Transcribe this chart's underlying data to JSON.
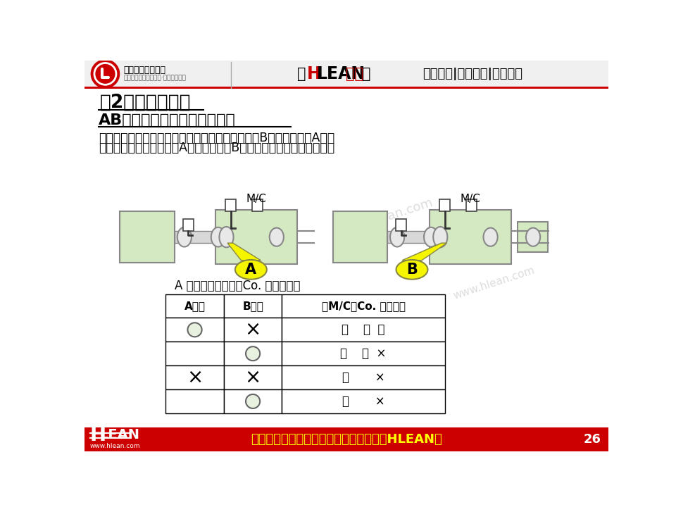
{
  "title_main": "（2）停止生产线",
  "subtitle": "AB控制（满负荷控制）的例子",
  "body_text_line1": "为了使工序之间的标准手持数量保持在一定范围，B处有工件，若A处没",
  "body_text_line2": "有工件，传送带不工作；A处有工件，若B处也有工件，传送带不工作。",
  "table_caption": "A 部件的运输条件（Co. 运行条件）",
  "machine_box_color": "#d4e8c2",
  "machine_label": "M/C",
  "label_A": "A",
  "label_B": "B",
  "label_AB_bg": "#f5f500",
  "table_headers": [
    "A工件",
    "B工件",
    "（M/C）Co. 运行条件"
  ],
  "table_row1_c3": "运    行  〇",
  "table_row2_c3": "停    止  ×",
  "table_row3_c3": "〃       ×",
  "table_row4_c3": "〃       ×",
  "footer_text": "做行业标杆，找精弘益；要幸福高效，用HLEAN！",
  "page_num": "26",
  "header_right": "精益生产|智能制造|管理前沿",
  "company_name": "精益生产促进中心",
  "company_sub": "中国先进精益管理体系·智能制造系统",
  "watermark": "www.hlean.com",
  "top_bar_color": "#cc0000",
  "bg_color": "#ffffff",
  "header_bg": "#f0f0f0",
  "roller_color": "#e8e8e8",
  "roller_border": "#888888",
  "arm_color": "#c0c0c0",
  "small_sq_color": "#ffffff",
  "conv_border": "#888888"
}
